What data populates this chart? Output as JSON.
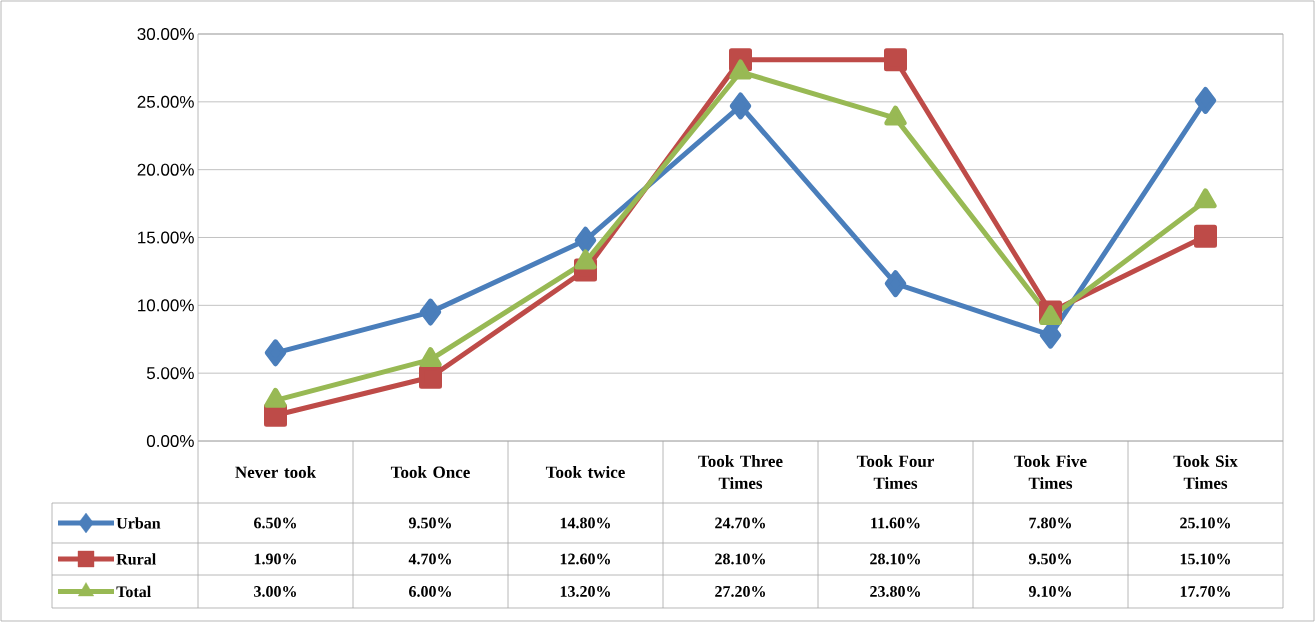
{
  "chart_data": {
    "type": "line",
    "categories": [
      "Never took",
      "Took Once",
      "Took twice",
      "Took Three Times",
      "Took Four Times",
      "Took Five Times",
      "Took Six Times"
    ],
    "series": [
      {
        "name": "Urban",
        "color": "#4a7ebb",
        "marker": "diamond",
        "values": [
          6.5,
          9.5,
          14.8,
          24.7,
          11.6,
          7.8,
          25.1
        ],
        "value_labels": [
          "6.50%",
          "9.50%",
          "14.80%",
          "24.70%",
          "11.60%",
          "7.80%",
          "25.10%"
        ]
      },
      {
        "name": "Rural",
        "color": "#be4b48",
        "marker": "square",
        "values": [
          1.9,
          4.7,
          12.6,
          28.1,
          28.1,
          9.5,
          15.1
        ],
        "value_labels": [
          "1.90%",
          "4.70%",
          "12.60%",
          "28.10%",
          "28.10%",
          "9.50%",
          "15.10%"
        ]
      },
      {
        "name": "Total",
        "color": "#98b954",
        "marker": "triangle",
        "values": [
          3.0,
          6.0,
          13.2,
          27.2,
          23.8,
          9.1,
          17.7
        ],
        "value_labels": [
          "3.00%",
          "6.00%",
          "13.20%",
          "27.20%",
          "23.80%",
          "9.10%",
          "17.70%"
        ]
      }
    ],
    "ylim": [
      0,
      30
    ],
    "yticks": [
      {
        "value": 0,
        "label": "0.00%"
      },
      {
        "value": 5,
        "label": "5.00%"
      },
      {
        "value": 10,
        "label": "10.00%"
      },
      {
        "value": 15,
        "label": "15.00%"
      },
      {
        "value": 20,
        "label": "20.00%"
      },
      {
        "value": 25,
        "label": "25.00%"
      },
      {
        "value": 30,
        "label": "30.00%"
      }
    ],
    "grid": "y",
    "legend": "bottom left",
    "line_style": "solid"
  }
}
